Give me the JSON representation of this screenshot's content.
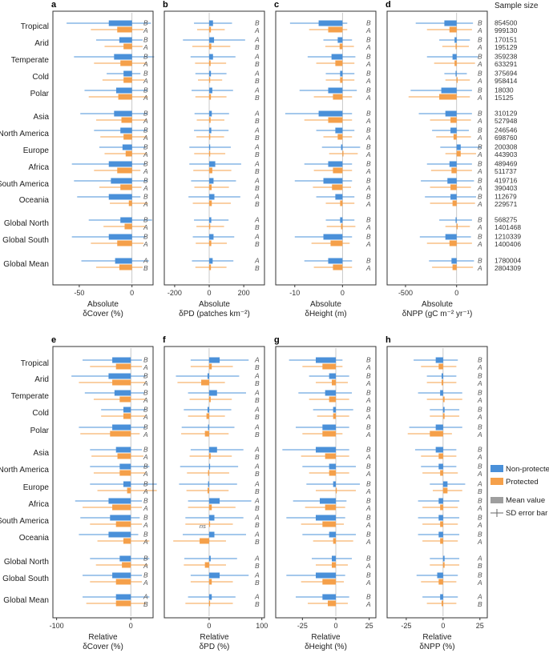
{
  "colors": {
    "non_protected": "#4a90d9",
    "protected": "#f5a04a",
    "frame": "#333333",
    "mean_legend": "#9e9e9e",
    "err_legend": "#666666"
  },
  "rows": [
    "Tropical",
    "Arid",
    "Temperate",
    "Cold",
    "Polar",
    "Asia",
    "North America",
    "Europe",
    "Africa",
    "South America",
    "Oceania",
    "Global North",
    "Global South",
    "Global Mean"
  ],
  "sample_size": {
    "header": "Sample size",
    "values": [
      [
        "854500",
        "999130"
      ],
      [
        "170151",
        "195129"
      ],
      [
        "359238",
        "633291"
      ],
      [
        "375694",
        "958414"
      ],
      [
        "18030",
        "15125"
      ],
      [
        "310129",
        "527948"
      ],
      [
        "246546",
        "698760"
      ],
      [
        "200308",
        "443903"
      ],
      [
        "489469",
        "511737"
      ],
      [
        "419716",
        "390403"
      ],
      [
        "112679",
        "229571"
      ],
      [
        "568275",
        "1401468"
      ],
      [
        "1210339",
        "1400406"
      ],
      [
        "1780004",
        "2804309"
      ]
    ]
  },
  "legend": {
    "non_protected": "Non-protected",
    "protected": "Protected",
    "mean": "Mean value",
    "sd": "SD error bar"
  },
  "chart_data": [
    {
      "panel": "a",
      "type": "bar",
      "title": "",
      "xlabel": [
        "Absolute",
        "δCover (%)"
      ],
      "xlim": [
        -75,
        20
      ],
      "xticks": [
        -50,
        0
      ],
      "letters": [
        [
          "B",
          "A"
        ],
        [
          "B",
          "A"
        ],
        [
          "B",
          "A"
        ],
        [
          "B",
          "A"
        ],
        [
          "B",
          "A"
        ],
        [
          "B",
          "A"
        ],
        [
          "B",
          "A"
        ],
        [
          "B",
          "A"
        ],
        [
          "B",
          "A"
        ],
        [
          "B",
          "A"
        ],
        [
          "B",
          "A"
        ],
        [
          "B",
          "A"
        ],
        [
          "B",
          "A"
        ],
        [
          "A",
          "B"
        ]
      ],
      "series": [
        {
          "name": "Non-protected",
          "values": [
            -22,
            -12,
            -17,
            -8,
            -15,
            -17,
            -11,
            -9,
            -22,
            -20,
            -22,
            -11,
            -22,
            -16
          ],
          "sd": [
            40,
            22,
            38,
            16,
            30,
            32,
            25,
            22,
            35,
            35,
            30,
            30,
            35,
            32
          ]
        },
        {
          "name": "Protected",
          "values": [
            -14,
            -8,
            -11,
            -8,
            -13,
            -10,
            -8,
            -6,
            -14,
            -11,
            -3,
            -7,
            -14,
            -12
          ],
          "sd": [
            25,
            18,
            25,
            20,
            28,
            24,
            22,
            20,
            22,
            20,
            18,
            20,
            25,
            22
          ]
        }
      ]
    },
    {
      "panel": "b",
      "type": "bar",
      "title": "",
      "xlabel": [
        "Absolute",
        "δPD (patches km⁻²)"
      ],
      "xlim": [
        -260,
        320
      ],
      "xticks": [
        -200,
        0,
        200
      ],
      "letters": [
        [
          "B",
          "A"
        ],
        [
          "A",
          "B"
        ],
        [
          "A",
          "B"
        ],
        [
          "A",
          "B"
        ],
        [
          "A",
          "B"
        ],
        [
          "A",
          "B"
        ],
        [
          "A",
          "B"
        ],
        [
          "A",
          "B"
        ],
        [
          "A",
          "B"
        ],
        [
          "A",
          "B"
        ],
        [
          "A",
          "B"
        ],
        [
          "A",
          "B"
        ],
        [
          "A",
          "B"
        ],
        [
          "A",
          "B"
        ]
      ],
      "series": [
        {
          "name": "Non-protected",
          "values": [
            22,
            28,
            22,
            10,
            18,
            15,
            12,
            5,
            35,
            25,
            30,
            12,
            25,
            20
          ],
          "sd": [
            110,
            180,
            130,
            90,
            120,
            100,
            100,
            120,
            150,
            130,
            150,
            100,
            120,
            120
          ]
        },
        {
          "name": "Protected",
          "values": [
            10,
            12,
            8,
            5,
            10,
            8,
            6,
            3,
            18,
            14,
            15,
            6,
            12,
            10
          ],
          "sd": [
            80,
            110,
            90,
            70,
            90,
            80,
            80,
            90,
            110,
            100,
            110,
            80,
            90,
            90
          ]
        }
      ]
    },
    {
      "panel": "c",
      "type": "bar",
      "title": "",
      "xlabel": [
        "Absolute",
        "δHeight (m)"
      ],
      "xlim": [
        -14,
        7
      ],
      "xticks": [
        -10,
        0
      ],
      "letters": [
        [
          "B",
          "A"
        ],
        [
          "B",
          "A"
        ],
        [
          "B",
          "A"
        ],
        [
          "B",
          "A"
        ],
        [
          "B",
          "A"
        ],
        [
          "B",
          "A"
        ],
        [
          "B",
          "A"
        ],
        [
          "B",
          "A"
        ],
        [
          "B",
          "A"
        ],
        [
          "B",
          "A"
        ],
        [
          "B",
          "A"
        ],
        [
          "B",
          "A"
        ],
        [
          "B",
          "A"
        ],
        [
          "B",
          "A"
        ]
      ],
      "series": [
        {
          "name": "Non-protected",
          "values": [
            -5,
            -1,
            -2.3,
            -0.5,
            -3,
            -5,
            -1.5,
            -0.3,
            -3,
            -4,
            -1.5,
            -0.5,
            -4,
            -3
          ],
          "sd": [
            6,
            3,
            5,
            3,
            6,
            7,
            4,
            4,
            5,
            6,
            4,
            3,
            6,
            5
          ]
        },
        {
          "name": "Protected",
          "values": [
            -3,
            -0.6,
            -1.5,
            -0.5,
            -2,
            -3,
            -1,
            0.2,
            -2,
            -2.2,
            -0.5,
            -0.3,
            -2.5,
            -2
          ],
          "sd": [
            4,
            3,
            4,
            3,
            4,
            5,
            3,
            3,
            4,
            4,
            3,
            3,
            4,
            4
          ]
        }
      ]
    },
    {
      "panel": "d",
      "type": "bar",
      "title": "",
      "xlabel": [
        "Absolute",
        "δNPP (gC m⁻² yr⁻¹)"
      ],
      "xlim": [
        -680,
        300
      ],
      "xticks": [
        -500,
        0
      ],
      "letters": [
        [
          "B",
          "A"
        ],
        [
          "B",
          "A"
        ],
        [
          "B",
          "A"
        ],
        [
          "B",
          "A"
        ],
        [
          "B",
          "A"
        ],
        [
          "B",
          "A"
        ],
        [
          "B",
          "A"
        ],
        [
          "B",
          "A"
        ],
        [
          "B",
          "A"
        ],
        [
          "B",
          "A"
        ],
        [
          "B",
          "A"
        ],
        [
          "B",
          "A"
        ],
        [
          "B",
          "A"
        ],
        [
          "B",
          "A"
        ]
      ],
      "series": [
        {
          "name": "Non-protected",
          "values": [
            -120,
            -20,
            -40,
            -10,
            -150,
            -110,
            -60,
            40,
            -70,
            -90,
            -60,
            -10,
            -110,
            -50
          ],
          "sd": [
            280,
            150,
            250,
            110,
            300,
            260,
            180,
            200,
            220,
            260,
            250,
            160,
            250,
            220
          ]
        },
        {
          "name": "Protected",
          "values": [
            -70,
            -10,
            -20,
            10,
            -170,
            -60,
            -30,
            40,
            -50,
            -60,
            -40,
            10,
            -70,
            -40
          ],
          "sd": [
            220,
            130,
            200,
            120,
            300,
            200,
            170,
            150,
            200,
            200,
            220,
            120,
            220,
            200
          ]
        }
      ]
    },
    {
      "panel": "e",
      "type": "bar",
      "title": "",
      "xlabel": [
        "Relative",
        "δCover (%)"
      ],
      "xlim": [
        -105,
        30
      ],
      "xticks": [
        -100,
        0
      ],
      "letters": [
        [
          "B",
          "A"
        ],
        [
          "B",
          "A"
        ],
        [
          "B",
          "A"
        ],
        [
          "B",
          "A"
        ],
        [
          "B",
          "A"
        ],
        [
          "B",
          "A"
        ],
        [
          "B",
          "A"
        ],
        [
          "B",
          "A"
        ],
        [
          "B",
          "A"
        ],
        [
          "B",
          "A"
        ],
        [
          "B",
          "A"
        ],
        [
          "B",
          "A"
        ],
        [
          "B",
          "A"
        ],
        [
          "A",
          "B"
        ]
      ],
      "series": [
        {
          "name": "Non-protected",
          "values": [
            -25,
            -30,
            -22,
            -10,
            -25,
            -20,
            -15,
            -10,
            -30,
            -28,
            -30,
            -15,
            -25,
            -20
          ],
          "sd": [
            40,
            50,
            40,
            30,
            45,
            35,
            40,
            45,
            45,
            40,
            40,
            40,
            40,
            45
          ]
        },
        {
          "name": "Protected",
          "values": [
            -20,
            -25,
            -15,
            -10,
            -28,
            -18,
            -15,
            -5,
            -25,
            -20,
            -10,
            -12,
            -20,
            -20
          ],
          "sd": [
            35,
            45,
            35,
            30,
            40,
            35,
            35,
            40,
            40,
            35,
            35,
            35,
            35,
            40
          ]
        }
      ]
    },
    {
      "panel": "f",
      "type": "bar",
      "title": "",
      "xlabel": [
        "Relative",
        "δPD (%)"
      ],
      "xlim": [
        -85,
        105
      ],
      "xticks": [
        0,
        100
      ],
      "letters": [
        [
          "A",
          "B"
        ],
        [
          "A",
          "B"
        ],
        [
          "A",
          "B"
        ],
        [
          "A",
          "B"
        ],
        [
          "A",
          "B"
        ],
        [
          "A",
          "B"
        ],
        [
          "A",
          "B"
        ],
        [
          "A",
          "B"
        ],
        [
          "A",
          "B"
        ],
        [
          "A",
          "B"
        ],
        [
          "A",
          "B"
        ],
        [
          "A",
          "B"
        ],
        [
          "A",
          "B"
        ],
        [
          "A",
          "B"
        ]
      ],
      "ns_index": 9,
      "series": [
        {
          "name": "Non-protected",
          "values": [
            20,
            -3,
            15,
            -3,
            -2,
            15,
            0,
            -2,
            20,
            10,
            10,
            3,
            20,
            5
          ],
          "sd": [
            55,
            60,
            55,
            45,
            50,
            50,
            55,
            55,
            60,
            55,
            60,
            50,
            55,
            45
          ]
        },
        {
          "name": "Protected",
          "values": [
            5,
            -15,
            3,
            -5,
            -8,
            3,
            -2,
            -3,
            5,
            0,
            -18,
            -8,
            5,
            0
          ],
          "sd": [
            40,
            45,
            40,
            35,
            45,
            40,
            40,
            40,
            45,
            45,
            50,
            40,
            40,
            45
          ]
        }
      ]
    },
    {
      "panel": "g",
      "type": "bar",
      "title": "",
      "xlabel": [
        "Relative",
        "δHeight (%)"
      ],
      "xlim": [
        -45,
        30
      ],
      "xticks": [
        -25,
        0,
        25
      ],
      "letters": [
        [
          "B",
          "A"
        ],
        [
          "B",
          "A"
        ],
        [
          "B",
          "A"
        ],
        [
          "B",
          "A"
        ],
        [
          "B",
          "A"
        ],
        [
          "B",
          "A"
        ],
        [
          "B",
          "A"
        ],
        [
          "B",
          "A"
        ],
        [
          "B",
          "A"
        ],
        [
          "B",
          "A"
        ],
        [
          "B",
          "A"
        ],
        [
          "B",
          "A"
        ],
        [
          "B",
          "A"
        ],
        [
          "B",
          "A"
        ]
      ],
      "series": [
        {
          "name": "Non-protected",
          "values": [
            -15,
            -5,
            -8,
            -2,
            -10,
            -15,
            -5,
            -2,
            -12,
            -15,
            -5,
            -3,
            -15,
            -10
          ],
          "sd": [
            20,
            15,
            20,
            15,
            20,
            25,
            20,
            20,
            20,
            22,
            20,
            15,
            22,
            20
          ]
        },
        {
          "name": "Protected",
          "values": [
            -10,
            -3,
            -5,
            -2,
            -10,
            -8,
            -5,
            0,
            -8,
            -10,
            -2,
            -3,
            -10,
            -6
          ],
          "sd": [
            15,
            12,
            15,
            12,
            15,
            18,
            15,
            15,
            15,
            16,
            15,
            12,
            16,
            15
          ]
        }
      ]
    },
    {
      "panel": "h",
      "type": "bar",
      "title": "",
      "xlabel": [
        "Relative",
        "δNPP (%)"
      ],
      "xlim": [
        -38,
        30
      ],
      "xticks": [
        -25,
        0,
        25
      ],
      "letters": [
        [
          "B",
          "A"
        ],
        [
          "B",
          "A"
        ],
        [
          "B",
          "A"
        ],
        [
          "B",
          "A"
        ],
        [
          "B",
          "A"
        ],
        [
          "B",
          "A"
        ],
        [
          "B",
          "A"
        ],
        [
          "A",
          "B"
        ],
        [
          "B",
          "A"
        ],
        [
          "B",
          "A"
        ],
        [
          "B",
          "A"
        ],
        [
          "A",
          "B"
        ],
        [
          "B",
          "A"
        ],
        [
          "A",
          "B"
        ]
      ],
      "series": [
        {
          "name": "Non-protected",
          "values": [
            -5,
            -1,
            -2,
            1,
            -5,
            -5,
            -3,
            3,
            -3,
            -3,
            -3,
            1,
            -4,
            -2
          ],
          "sd": [
            15,
            10,
            15,
            10,
            18,
            14,
            12,
            12,
            14,
            14,
            14,
            10,
            14,
            12
          ]
        },
        {
          "name": "Protected",
          "values": [
            -3,
            -1,
            1,
            1,
            -9,
            -3,
            -2,
            3,
            -2,
            -2,
            -2,
            1,
            -3,
            -1
          ],
          "sd": [
            12,
            10,
            12,
            10,
            15,
            12,
            12,
            10,
            12,
            12,
            12,
            10,
            12,
            10
          ]
        }
      ]
    }
  ]
}
